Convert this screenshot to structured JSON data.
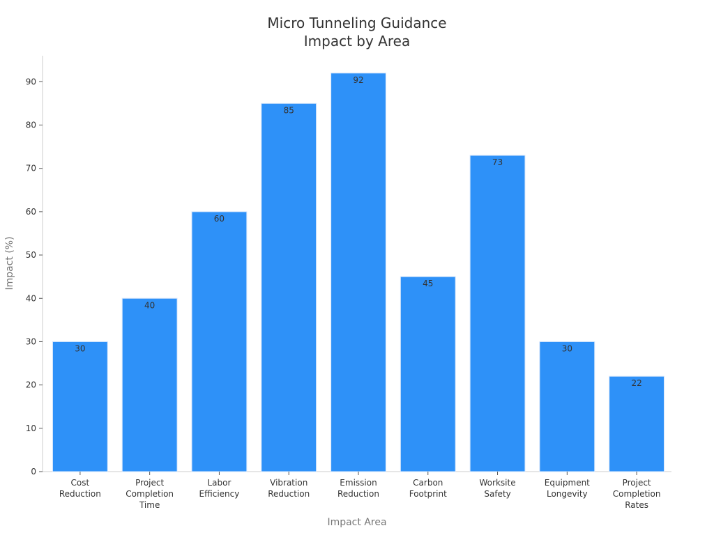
{
  "chart_data": {
    "type": "bar",
    "title_lines": [
      "Micro Tunneling Guidance",
      "Impact by Area"
    ],
    "xlabel": "Impact Area",
    "ylabel": "Impact (%)",
    "categories": [
      [
        "Cost",
        "Reduction"
      ],
      [
        "Project",
        "Completion",
        "Time"
      ],
      [
        "Labor",
        "Efficiency"
      ],
      [
        "Vibration",
        "Reduction"
      ],
      [
        "Emission",
        "Reduction"
      ],
      [
        "Carbon",
        "Footprint"
      ],
      [
        "Worksite",
        "Safety"
      ],
      [
        "Equipment",
        "Longevity"
      ],
      [
        "Project",
        "Completion",
        "Rates"
      ]
    ],
    "values": [
      30,
      40,
      60,
      85,
      92,
      45,
      73,
      30,
      22
    ],
    "ylim": [
      0,
      96
    ],
    "yticks": [
      0,
      10,
      20,
      30,
      40,
      50,
      60,
      70,
      80,
      90
    ],
    "bar_color": "#2e91f8",
    "grid": false,
    "data_labels": true
  }
}
